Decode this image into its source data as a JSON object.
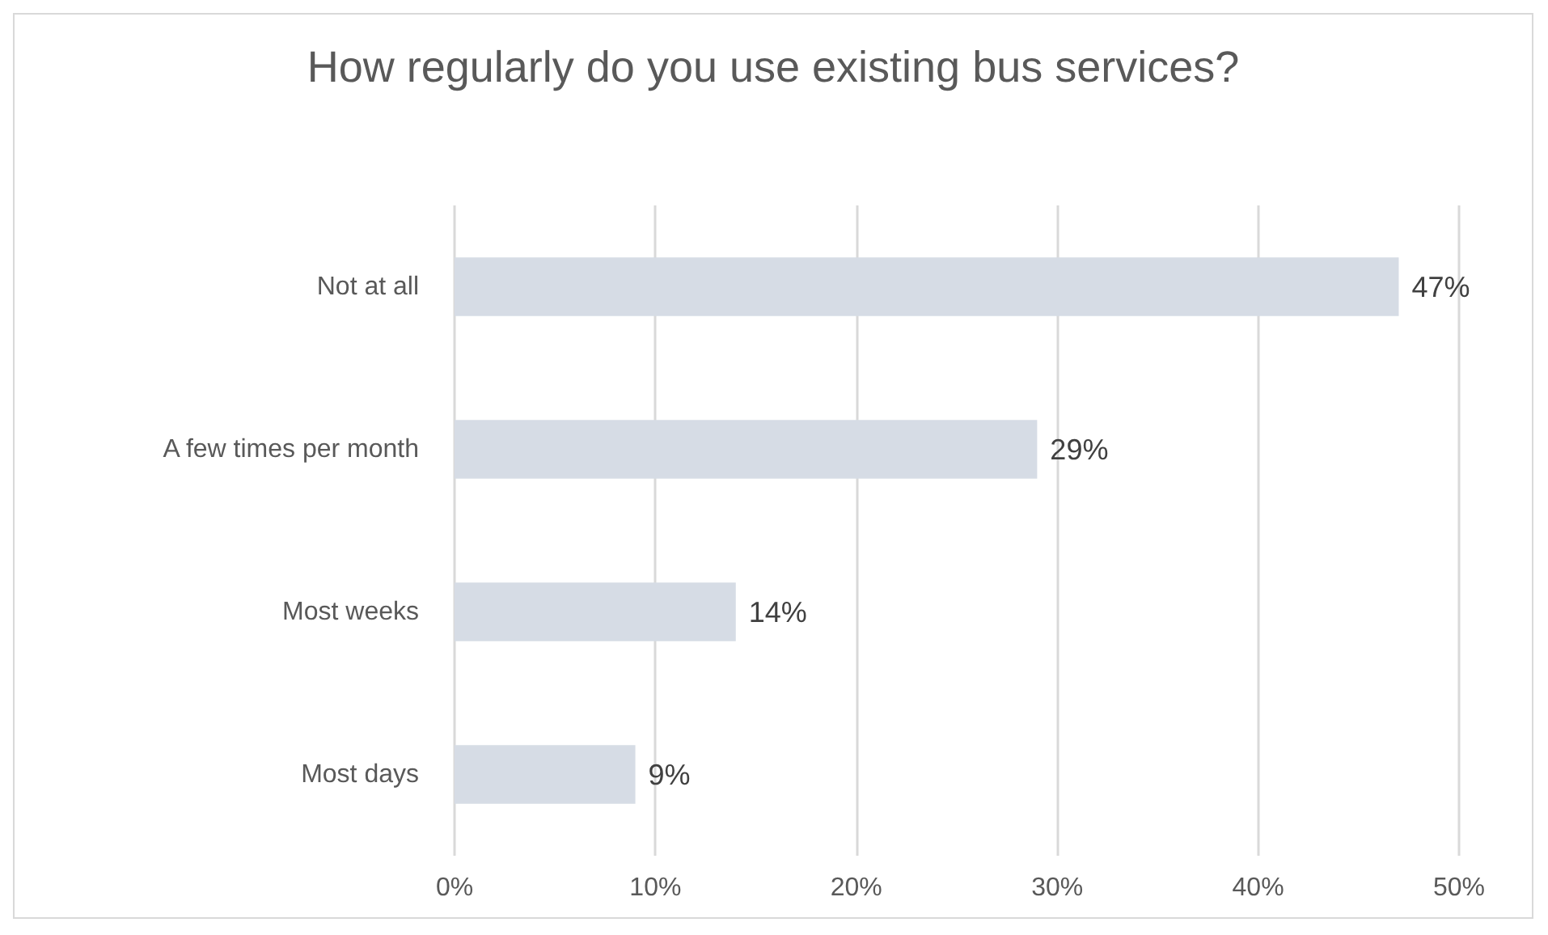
{
  "chart_data": {
    "type": "bar",
    "orientation": "horizontal",
    "title": "How regularly do you use existing bus services?",
    "categories": [
      "Not at all",
      "A few times per month",
      "Most weeks",
      "Most days"
    ],
    "values": [
      47,
      29,
      14,
      9
    ],
    "color": "#d6dce5",
    "value_labels": [
      "47%",
      "29%",
      "14%",
      "9%"
    ],
    "xlim": [
      0,
      50
    ],
    "xticks": [
      {
        "value": 0,
        "label": "0%"
      },
      {
        "value": 10,
        "label": "10%"
      },
      {
        "value": 20,
        "label": "20%"
      },
      {
        "value": 30,
        "label": "30%"
      },
      {
        "value": 40,
        "label": "40%"
      },
      {
        "value": 50,
        "label": "50%"
      }
    ],
    "grid": "x"
  }
}
